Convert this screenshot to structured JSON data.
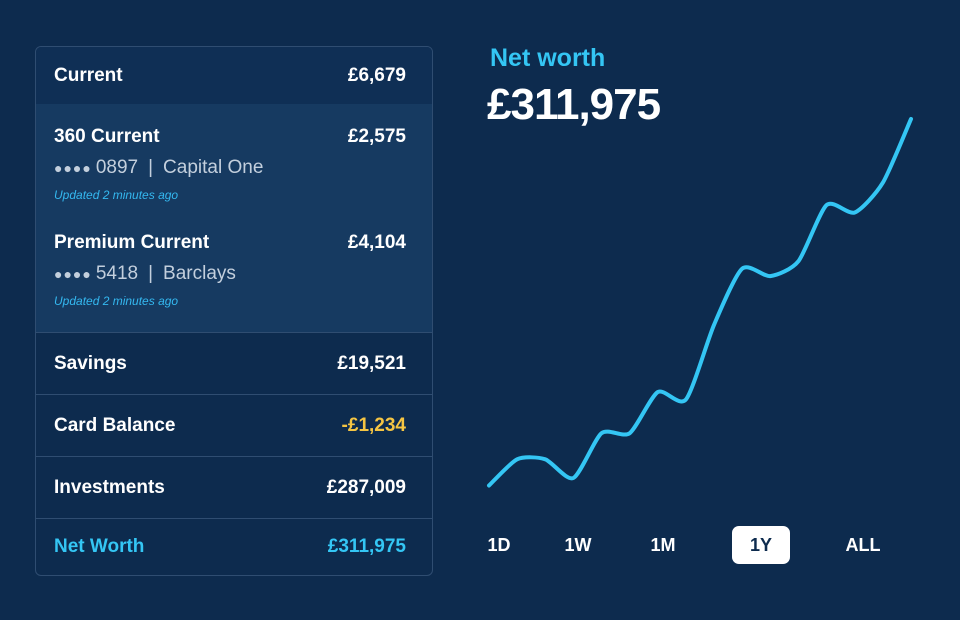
{
  "accounts": {
    "current": {
      "label": "Current",
      "amount": "£6,679"
    },
    "sub_accounts": [
      {
        "name": "360 Current",
        "amount": "£2,575",
        "dots": "●●●●",
        "number": "0897",
        "separator": "|",
        "bank": "Capital One",
        "updated": "Updated 2 minutes ago"
      },
      {
        "name": "Premium Current",
        "amount": "£4,104",
        "dots": "●●●●",
        "number": "5418",
        "separator": "|",
        "bank": "Barclays",
        "updated": "Updated 2 minutes ago"
      }
    ],
    "savings": {
      "label": "Savings",
      "amount": "£19,521"
    },
    "card_balance": {
      "label": "Card Balance",
      "amount": "-£1,234",
      "color": "#f5c543"
    },
    "investments": {
      "label": "Investments",
      "amount": "£287,009"
    },
    "net_worth": {
      "label": "Net Worth",
      "amount": "£311,975",
      "color": "#34c6f4"
    }
  },
  "summary": {
    "title": "Net worth",
    "value": "£311,975"
  },
  "chart_data": {
    "type": "line",
    "series": [
      {
        "values": [
          2,
          9,
          9,
          4,
          16,
          16,
          27,
          25,
          45,
          60,
          58,
          62,
          77,
          75,
          83,
          100
        ],
        "color": "#34c6f4"
      }
    ],
    "ylim": [
      0,
      100
    ],
    "grid": false
  },
  "ranges": {
    "selected": "1Y",
    "items": [
      "1D",
      "1W",
      "1M",
      "1Y",
      "ALL"
    ]
  }
}
